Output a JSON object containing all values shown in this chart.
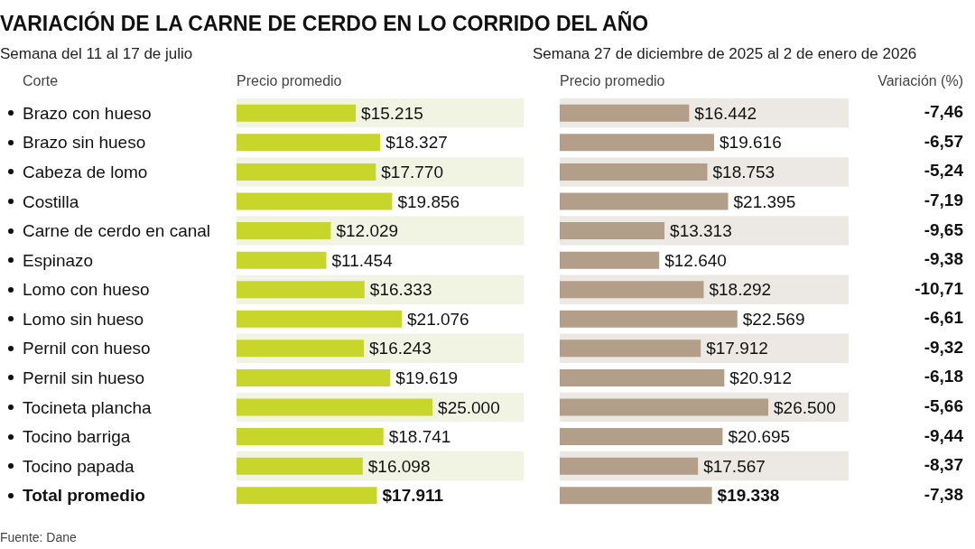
{
  "chart_data": [
    {
      "type": "bar",
      "orientation": "horizontal",
      "title": "VARIACIÓN DE LA CARNE DE CERDO EN LO CORRIDO DEL AÑO",
      "subtitle": "Semana del 11 al 17 de julio",
      "ylabel": "Corte",
      "xlabel": "Precio promedio",
      "categories": [
        "Brazo con hueso",
        "Brazo sin hueso",
        "Cabeza de lomo",
        "Costilla",
        "Carne de cerdo en canal",
        "Espinazo",
        "Lomo con hueso",
        "Lomo sin hueso",
        "Pernil con hueso",
        "Pernil sin hueso",
        "Tocineta plancha",
        "Tocino barriga",
        "Tocino papada",
        "Total promedio"
      ],
      "values": [
        15215,
        18327,
        17770,
        19856,
        12029,
        11454,
        16333,
        21076,
        16243,
        19619,
        25000,
        18741,
        16098,
        17911
      ],
      "value_labels": [
        "$15.215",
        "$18.327",
        "$17.770",
        "$19.856",
        "$12.029",
        "$11.454",
        "$16.333",
        "$21.076",
        "$16.243",
        "$19.619",
        "$25.000",
        "$18.741",
        "$16.098",
        "$17.911"
      ],
      "color": "#c8d62b",
      "tick_labels": "y",
      "annotations": [
        "Fuente: Dane"
      ]
    },
    {
      "type": "bar",
      "orientation": "horizontal",
      "subtitle": "Semana 27 de diciembre de 2025 al 2 de enero de 2026",
      "xlabel": "Precio promedio",
      "categories": [
        null,
        null,
        null,
        null,
        null,
        null,
        null,
        null,
        null,
        null,
        null,
        null,
        null,
        null
      ],
      "values": [
        16442,
        19616,
        18753,
        21395,
        13313,
        12640,
        18292,
        22569,
        17912,
        20912,
        26500,
        20695,
        17567,
        19338
      ],
      "value_labels": [
        "$16.442",
        "$19.616",
        "$18.753",
        "$21.395",
        "$13.313",
        "$12.640",
        "$18.292",
        "$22.569",
        "$17.912",
        "$20.912",
        "$26.500",
        "$20.695",
        "$17.567",
        "$19.338"
      ],
      "color": "#b39e89",
      "tick_labels": false
    },
    {
      "type": "other",
      "title": "Variación (%)",
      "annotations": [
        "-7,46",
        "-6,57",
        "-5,24",
        "-7,19",
        "-9,65",
        "-9,38",
        "-10,71",
        "-6,61",
        "-9,32",
        "-6,18",
        "-5,66",
        "-9,44",
        "-8,37",
        "-7,38"
      ]
    }
  ]
}
